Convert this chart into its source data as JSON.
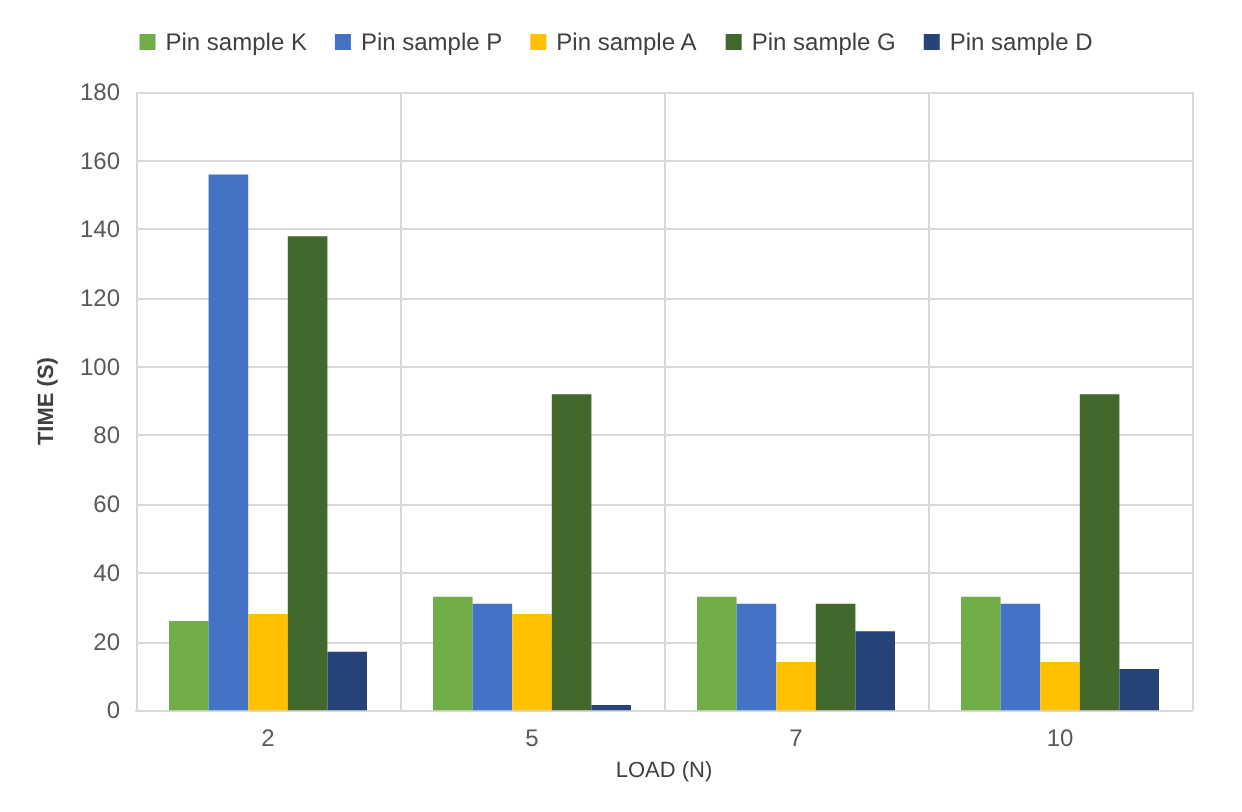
{
  "chart_data": {
    "type": "bar",
    "xlabel": "LOAD (N)",
    "ylabel": "TIME (S)",
    "categories": [
      "2",
      "5",
      "7",
      "10"
    ],
    "series": [
      {
        "name": "Pin sample K",
        "color": "#70ad47",
        "values": [
          26,
          33,
          33,
          33
        ]
      },
      {
        "name": "Pin sample P",
        "color": "#4472c4",
        "values": [
          156,
          31,
          31,
          31
        ]
      },
      {
        "name": "Pin sample A",
        "color": "#ffc000",
        "values": [
          28,
          28,
          14,
          14
        ]
      },
      {
        "name": "Pin sample G",
        "color": "#43682b",
        "values": [
          138,
          92,
          31,
          92
        ]
      },
      {
        "name": "Pin sample D",
        "color": "#264478",
        "values": [
          17,
          1.5,
          23,
          12
        ]
      }
    ],
    "ylim": [
      0,
      180
    ],
    "yticks": [
      0,
      20,
      40,
      60,
      80,
      100,
      120,
      140,
      160,
      180
    ],
    "grid": true,
    "legend": "top"
  }
}
